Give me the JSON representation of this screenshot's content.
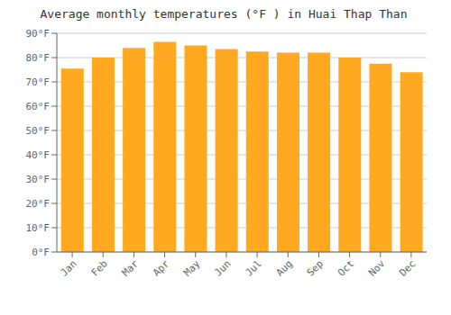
{
  "chart_data": {
    "type": "bar",
    "title": "Average monthly temperatures (°F ) in Huai Thap Than",
    "categories": [
      "Jan",
      "Feb",
      "Mar",
      "Apr",
      "May",
      "Jun",
      "Jul",
      "Aug",
      "Sep",
      "Oct",
      "Nov",
      "Dec"
    ],
    "values": [
      75.5,
      80.0,
      84.0,
      86.5,
      85.0,
      83.5,
      82.5,
      82.0,
      82.0,
      80.0,
      77.5,
      74.0
    ],
    "color": "#FFA820",
    "ylim": [
      0,
      90
    ],
    "yticks": [
      {
        "value": 0,
        "label": "0°F"
      },
      {
        "value": 10,
        "label": "10°F"
      },
      {
        "value": 20,
        "label": "20°F"
      },
      {
        "value": 30,
        "label": "30°F"
      },
      {
        "value": 40,
        "label": "40°F"
      },
      {
        "value": 50,
        "label": "50°F"
      },
      {
        "value": 60,
        "label": "60°F"
      },
      {
        "value": 70,
        "label": "70°F"
      },
      {
        "value": 80,
        "label": "80°F"
      },
      {
        "value": 90,
        "label": "90°F"
      }
    ],
    "grid": true
  }
}
